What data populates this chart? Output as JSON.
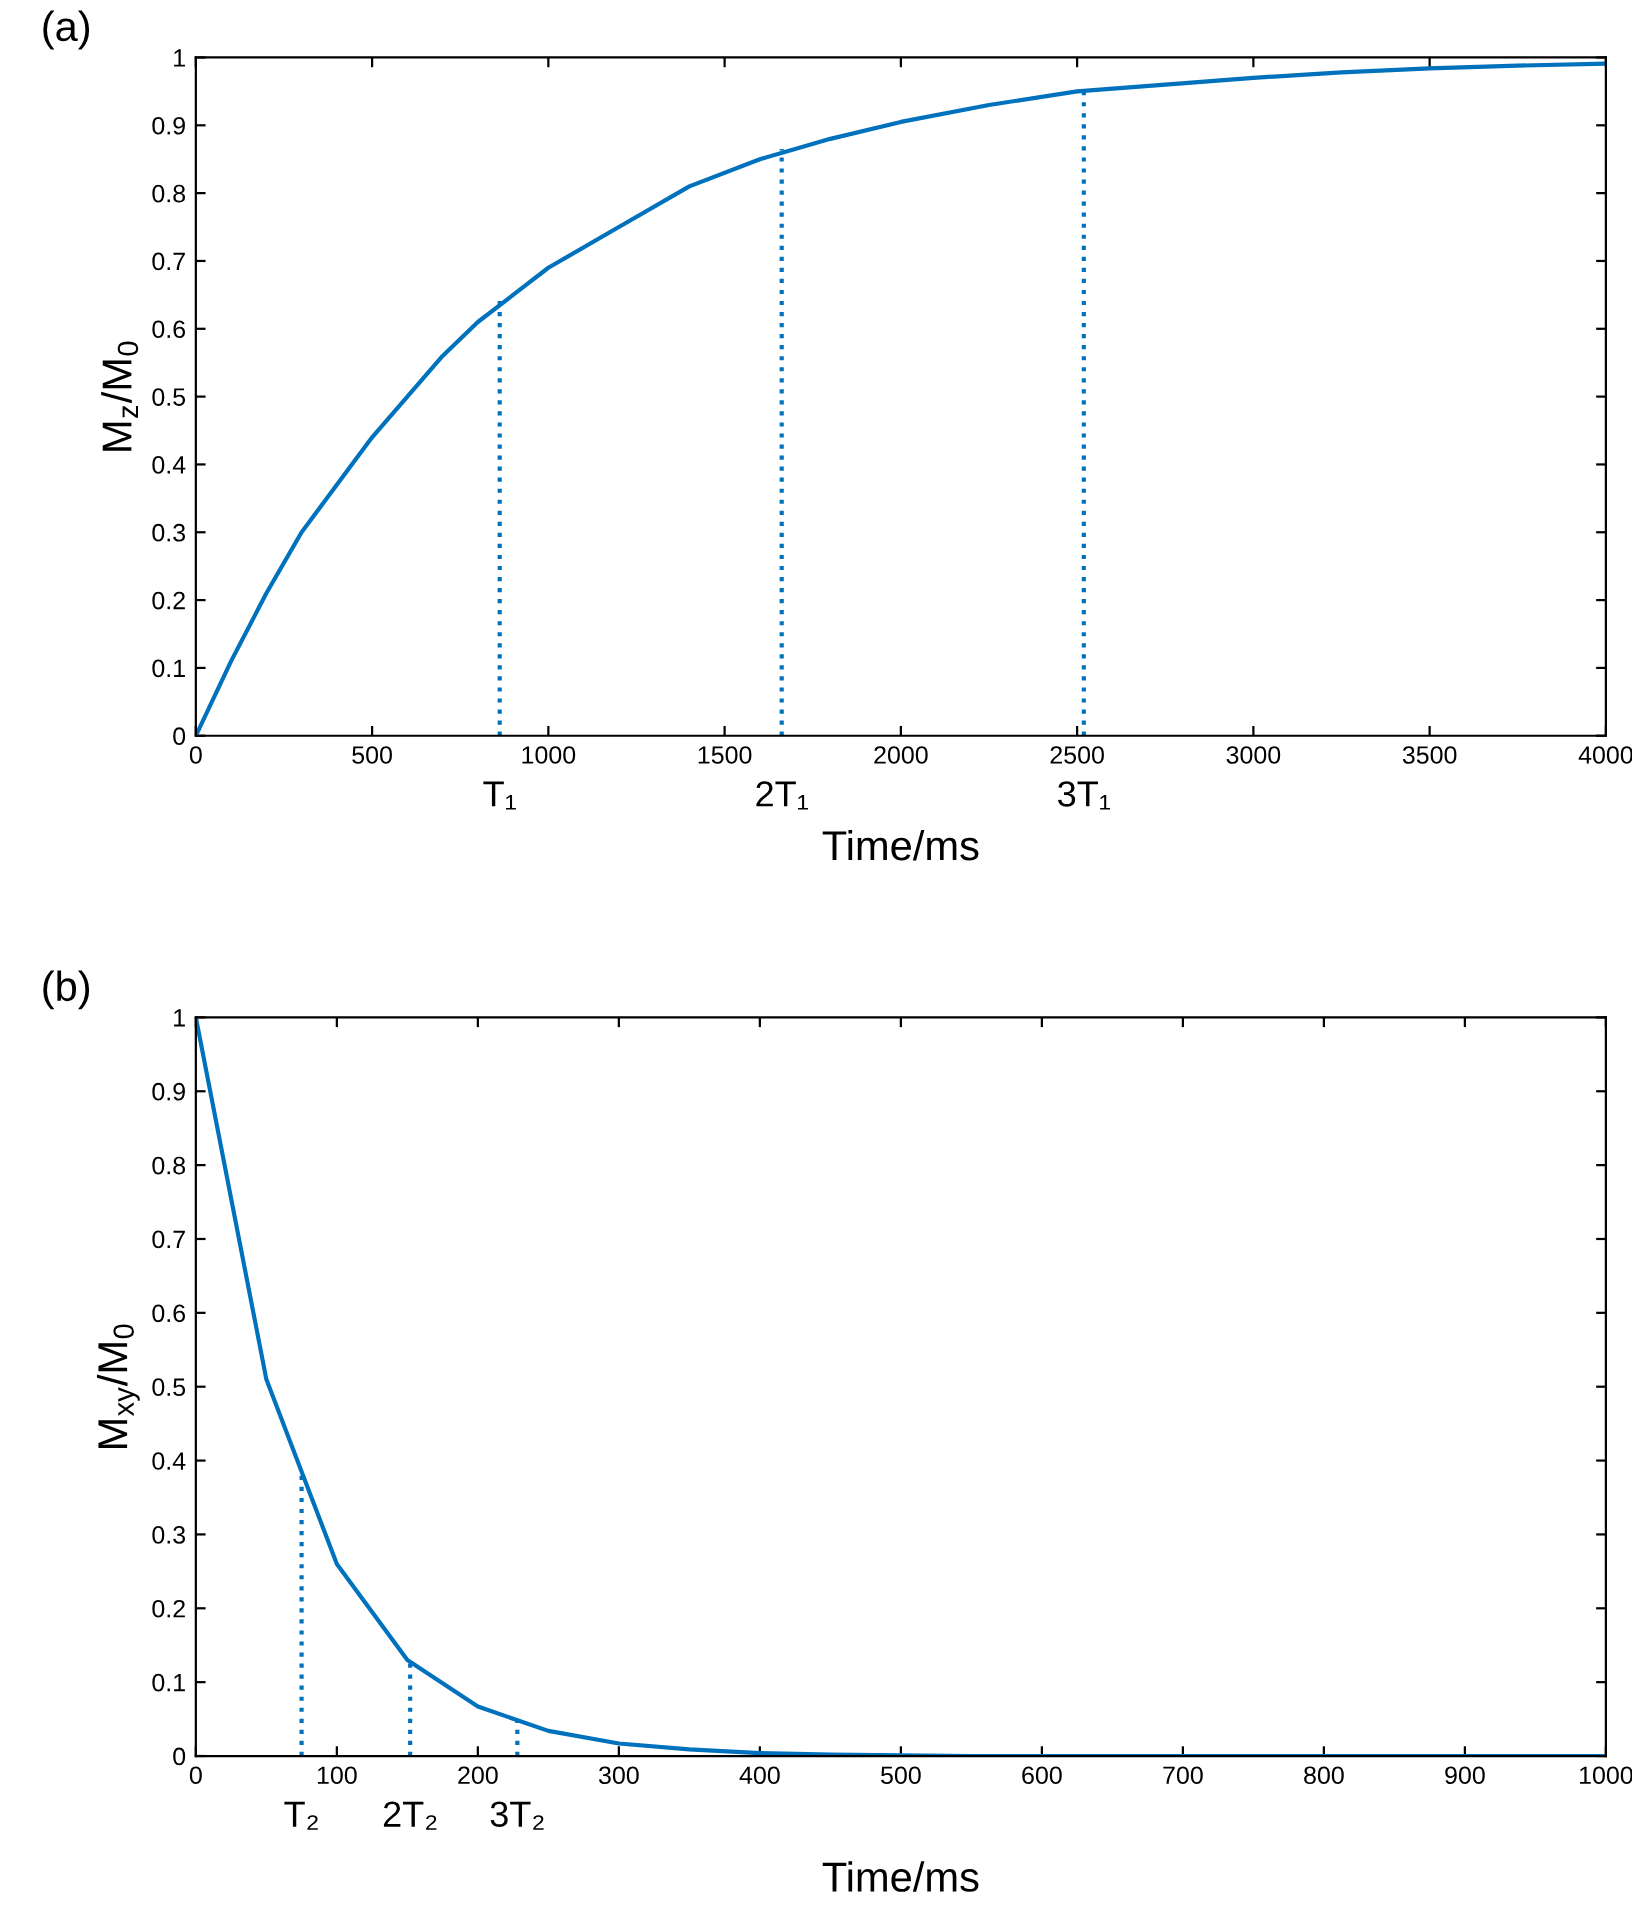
{
  "chart_data": [
    {
      "type": "line",
      "title": "(a)",
      "xlabel": "Time/ms",
      "ylabel": "M$_{z}$/M$_{0}$",
      "xlim": [
        0,
        4000
      ],
      "ylim": [
        0,
        1
      ],
      "xticks": [
        0,
        500,
        1000,
        1500,
        2000,
        2500,
        3000,
        3500,
        4000
      ],
      "yticks": [
        0,
        0.1,
        0.2,
        0.3,
        0.4,
        0.5,
        0.6,
        0.7,
        0.8,
        0.9,
        1
      ],
      "grid": false,
      "legend": false,
      "series": [
        {
          "color": "#0072bd",
          "line_style": "solid",
          "x": [
            0,
            100,
            200,
            300,
            400,
            500,
            600,
            700,
            800,
            900,
            1000,
            1200,
            1400,
            1600,
            1800,
            2000,
            2250,
            2500,
            2750,
            3000,
            3250,
            3500,
            3750,
            4000
          ],
          "values": [
            0,
            0.11,
            0.21,
            0.3,
            0.37,
            0.44,
            0.5,
            0.56,
            0.61,
            0.65,
            0.69,
            0.75,
            0.81,
            0.85,
            0.88,
            0.905,
            0.93,
            0.95,
            0.96,
            0.97,
            0.978,
            0.984,
            0.988,
            0.991
          ]
        },
        {
          "color": "#0072bd",
          "line_style": "dotted",
          "x": [
            862,
            862
          ],
          "values": [
            0,
            0.645
          ]
        },
        {
          "color": "#0072bd",
          "line_style": "dotted",
          "x": [
            1662,
            1662
          ],
          "values": [
            0,
            0.865
          ]
        },
        {
          "color": "#0072bd",
          "line_style": "dotted",
          "x": [
            2519,
            2519
          ],
          "values": [
            0,
            0.95
          ]
        }
      ],
      "annotations": [
        {
          "text": "T₁",
          "x": 862,
          "y": 0
        },
        {
          "text": "2T₁",
          "x": 1662,
          "y": 0
        },
        {
          "text": "3T₁",
          "x": 2519,
          "y": 0
        }
      ]
    },
    {
      "type": "line",
      "title": "(b)",
      "xlabel": "Time/ms",
      "ylabel": "M$_{xy}$/M$_{0}$",
      "xlim": [
        0,
        1000
      ],
      "ylim": [
        0,
        1
      ],
      "xticks": [
        0,
        100,
        200,
        300,
        400,
        500,
        600,
        700,
        800,
        900,
        1000
      ],
      "yticks": [
        0,
        0.1,
        0.2,
        0.3,
        0.4,
        0.5,
        0.6,
        0.7,
        0.8,
        0.9,
        1
      ],
      "grid": false,
      "legend": false,
      "series": [
        {
          "color": "#0072bd",
          "line_style": "solid",
          "x": [
            0,
            50,
            100,
            150,
            200,
            250,
            300,
            350,
            400,
            450,
            500,
            550,
            600,
            650,
            700,
            750,
            800,
            850,
            900,
            950,
            1000
          ],
          "values": [
            1,
            0.51,
            0.26,
            0.13,
            0.067,
            0.034,
            0.017,
            0.009,
            0.004,
            0.002,
            0.001,
            0,
            0,
            0,
            0,
            0,
            0,
            0,
            0,
            0,
            0
          ]
        },
        {
          "color": "#0072bd",
          "line_style": "dotted",
          "x": [
            75,
            75
          ],
          "values": [
            0,
            0.38
          ]
        },
        {
          "color": "#0072bd",
          "line_style": "dotted",
          "x": [
            152,
            152
          ],
          "values": [
            0,
            0.13
          ]
        },
        {
          "color": "#0072bd",
          "line_style": "dotted",
          "x": [
            228,
            228
          ],
          "values": [
            0,
            0.05
          ]
        }
      ],
      "annotations": [
        {
          "text": "T₂",
          "x": 75,
          "y": 0
        },
        {
          "text": "2T₂",
          "x": 152,
          "y": 0
        },
        {
          "text": "3T₂",
          "x": 228,
          "y": 0
        }
      ]
    }
  ]
}
